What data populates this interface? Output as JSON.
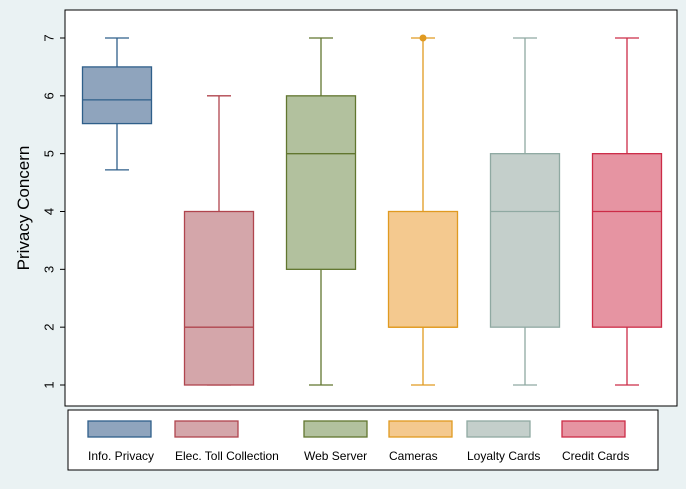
{
  "chart_data": {
    "type": "boxplot",
    "title": "",
    "xlabel": "",
    "ylabel": "Privacy Concern",
    "ylim": [
      1,
      7
    ],
    "yticks": [
      "1",
      "2",
      "3",
      "4",
      "5",
      "6",
      "7"
    ],
    "grid": false,
    "legend_position": "bottom",
    "series": [
      {
        "name": "Info. Privacy",
        "min": 4.72,
        "q1": 5.52,
        "median": 5.93,
        "q3": 6.5,
        "max": 7,
        "outliers": [],
        "fill": "#8fa4bd",
        "stroke": "#2f5f8a"
      },
      {
        "name": "Elec. Toll Collection",
        "min": 1,
        "q1": 1,
        "median": 2,
        "q3": 4,
        "max": 6,
        "outliers": [],
        "fill": "#d4a6aa",
        "stroke": "#b0454e"
      },
      {
        "name": "Web Server",
        "min": 1,
        "q1": 3,
        "median": 5,
        "q3": 6,
        "max": 7,
        "outliers": [],
        "fill": "#b2c19e",
        "stroke": "#61762f"
      },
      {
        "name": "Cameras",
        "min": 1,
        "q1": 2,
        "median": 2,
        "q3": 4,
        "max": 7,
        "outliers": [
          7
        ],
        "fill": "#f4c98f",
        "stroke": "#e09a21"
      },
      {
        "name": "Loyalty Cards",
        "min": 1,
        "q1": 2,
        "median": 4,
        "q3": 5,
        "max": 7,
        "outliers": [],
        "fill": "#c4cfcb",
        "stroke": "#8fa9a2"
      },
      {
        "name": "Credit Cards",
        "min": 1,
        "q1": 2,
        "median": 4,
        "q3": 5,
        "max": 7,
        "outliers": [],
        "fill": "#e694a2",
        "stroke": "#cc2c47"
      }
    ]
  }
}
